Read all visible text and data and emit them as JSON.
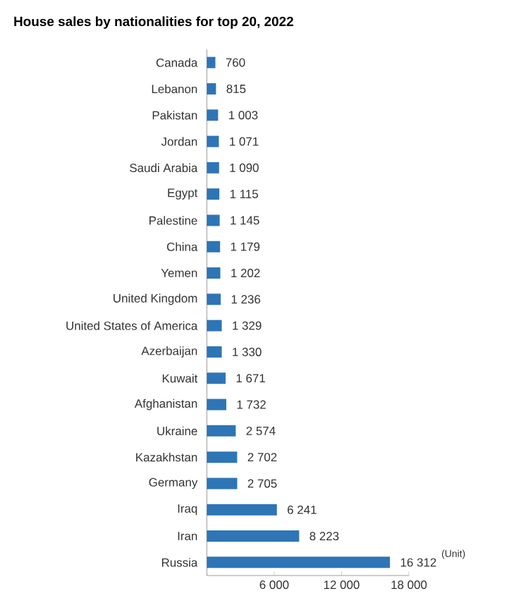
{
  "chart_data": {
    "type": "bar",
    "orientation": "horizontal",
    "title": "House sales by nationalities for top 20, 2022",
    "categories": [
      "Canada",
      "Lebanon",
      "Pakistan",
      "Jordan",
      "Saudi Arabia",
      "Egypt",
      "Palestine",
      "China",
      "Yemen",
      "United Kingdom",
      "United States of America",
      "Azerbaijan",
      "Kuwait",
      "Afghanistan",
      "Ukraine",
      "Kazakhstan",
      "Germany",
      "Iraq",
      "Iran",
      "Russia"
    ],
    "values": [
      760,
      815,
      1003,
      1071,
      1090,
      1115,
      1145,
      1179,
      1202,
      1236,
      1329,
      1330,
      1671,
      1732,
      2574,
      2702,
      2705,
      6241,
      8223,
      16312
    ],
    "value_labels": [
      "760",
      "815",
      "1 003",
      "1 071",
      "1 090",
      "1 115",
      "1 145",
      "1 179",
      "1 202",
      "1 236",
      "1 329",
      "1 330",
      "1 671",
      "1 732",
      "2 574",
      "2 702",
      "2 705",
      "6 241",
      "8 223",
      "16 312"
    ],
    "color": "#2e75b6",
    "xlim": [
      0,
      18000
    ],
    "xticks": [
      {
        "value": 6000,
        "label": "6 000"
      },
      {
        "value": 12000,
        "label": "12 000"
      },
      {
        "value": 18000,
        "label": "18 000"
      }
    ],
    "annotations": [
      "(Unit)"
    ]
  }
}
